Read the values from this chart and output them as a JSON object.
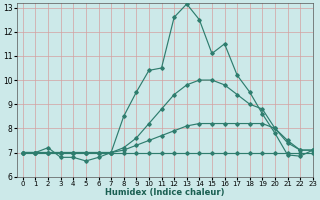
{
  "xlabel": "Humidex (Indice chaleur)",
  "ylabel": "",
  "xlim": [
    -0.5,
    23
  ],
  "ylim": [
    6,
    13.2
  ],
  "yticks": [
    6,
    7,
    8,
    9,
    10,
    11,
    12,
    13
  ],
  "xticks": [
    0,
    1,
    2,
    3,
    4,
    5,
    6,
    7,
    8,
    9,
    10,
    11,
    12,
    13,
    14,
    15,
    16,
    17,
    18,
    19,
    20,
    21,
    22,
    23
  ],
  "bg_color": "#cce9e9",
  "plot_bg_color": "#cce9e9",
  "line_color": "#2e7d6e",
  "grid_color": "#b0d0d0",
  "lines": [
    {
      "x": [
        0,
        1,
        2,
        3,
        4,
        5,
        6,
        7,
        8,
        9,
        10,
        11,
        12,
        13,
        14,
        15,
        16,
        17,
        18,
        19,
        20,
        21,
        22,
        23
      ],
      "y": [
        7.0,
        7.0,
        7.0,
        7.0,
        7.0,
        7.0,
        7.0,
        7.0,
        7.0,
        7.0,
        7.0,
        7.0,
        7.0,
        7.0,
        7.0,
        7.0,
        7.0,
        7.0,
        7.0,
        7.0,
        7.0,
        7.0,
        7.0,
        7.0
      ]
    },
    {
      "x": [
        0,
        1,
        2,
        3,
        4,
        5,
        6,
        7,
        8,
        9,
        10,
        11,
        12,
        13,
        14,
        15,
        16,
        17,
        18,
        19,
        20,
        21,
        22,
        23
      ],
      "y": [
        7.0,
        7.0,
        7.0,
        7.0,
        7.0,
        7.0,
        7.0,
        7.0,
        7.1,
        7.3,
        7.5,
        7.7,
        7.9,
        8.1,
        8.2,
        8.2,
        8.2,
        8.2,
        8.2,
        8.2,
        8.0,
        7.5,
        7.1,
        7.1
      ]
    },
    {
      "x": [
        0,
        1,
        2,
        3,
        4,
        5,
        6,
        7,
        8,
        9,
        10,
        11,
        12,
        13,
        14,
        15,
        16,
        17,
        18,
        19,
        20,
        21,
        22,
        23
      ],
      "y": [
        7.0,
        7.0,
        7.0,
        7.0,
        7.0,
        7.0,
        7.0,
        7.0,
        7.2,
        7.6,
        8.2,
        8.8,
        9.4,
        9.8,
        10.0,
        10.0,
        9.8,
        9.4,
        9.0,
        8.8,
        8.0,
        7.4,
        7.1,
        7.1
      ]
    },
    {
      "x": [
        0,
        1,
        2,
        3,
        4,
        5,
        6,
        7,
        8,
        9,
        10,
        11,
        12,
        13,
        14,
        15,
        16,
        17,
        18,
        19,
        20,
        21,
        22,
        23
      ],
      "y": [
        7.0,
        7.0,
        7.2,
        6.8,
        6.8,
        6.65,
        6.8,
        7.0,
        8.5,
        9.5,
        10.4,
        10.5,
        12.6,
        13.15,
        12.5,
        11.1,
        11.5,
        10.2,
        9.5,
        8.6,
        7.8,
        6.9,
        6.85,
        7.1
      ]
    }
  ]
}
